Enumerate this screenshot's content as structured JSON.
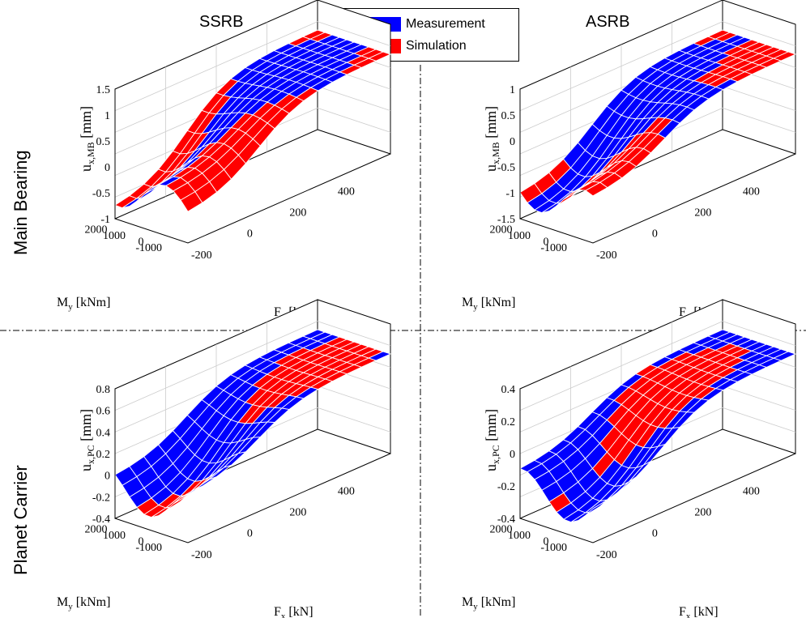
{
  "columns": {
    "left": "SSRB",
    "right": "ASRB"
  },
  "rows": {
    "top": "Main Bearing",
    "bottom": "Planet Carrier"
  },
  "legend": {
    "items": [
      {
        "label": "Measurement",
        "color": "#0000ff"
      },
      {
        "label": "Simulation",
        "color": "#ff0000"
      }
    ]
  },
  "chart_data": [
    {
      "type": "surface",
      "title": "SSRB",
      "row": "Main Bearing",
      "zlabel_main": "u",
      "zlabel_sub": "x,MB",
      "zlabel_unit": "[mm]",
      "xlabel_main": "F",
      "xlabel_sub": "x",
      "xlabel_unit": "[kN]",
      "ylabel_main": "M",
      "ylabel_sub": "y",
      "ylabel_unit": "[kNm]",
      "zticks": [
        "1.5",
        "1",
        "0.5",
        "0",
        "-0.5",
        "-1"
      ],
      "xticks": [
        "-200",
        "0",
        "200",
        "400"
      ],
      "yticks": [
        "2000",
        "1000",
        "0",
        "-1000"
      ],
      "zlim": [
        -1,
        1.5
      ],
      "xlim": [
        -250,
        450
      ],
      "ylim": [
        -1500,
        2500
      ],
      "series": [
        {
          "name": "Measurement",
          "color": "#0000ff",
          "z_range": [
            -1,
            0.9
          ]
        },
        {
          "name": "Simulation",
          "color": "#ff0000",
          "z_range": [
            -1,
            0.9
          ]
        }
      ]
    },
    {
      "type": "surface",
      "title": "ASRB",
      "row": "Main Bearing",
      "zlabel_main": "u",
      "zlabel_sub": "x,MB",
      "zlabel_unit": "[mm]",
      "xlabel_main": "F",
      "xlabel_sub": "x",
      "xlabel_unit": "[kN]",
      "ylabel_main": "M",
      "ylabel_sub": "y",
      "ylabel_unit": "[kNm]",
      "zticks": [
        "1",
        "0.5",
        "0",
        "-0.5",
        "-1",
        "-1.5"
      ],
      "xticks": [
        "-200",
        "0",
        "200",
        "400"
      ],
      "yticks": [
        "2000",
        "1000",
        "0",
        "-1000"
      ],
      "zlim": [
        -1.5,
        1
      ],
      "xlim": [
        -250,
        450
      ],
      "ylim": [
        -1500,
        2500
      ],
      "series": [
        {
          "name": "Measurement",
          "color": "#0000ff",
          "z_range": [
            -1.4,
            0.8
          ]
        },
        {
          "name": "Simulation",
          "color": "#ff0000",
          "z_range": [
            -1.4,
            0.8
          ]
        }
      ]
    },
    {
      "type": "surface",
      "title": "SSRB",
      "row": "Planet Carrier",
      "zlabel_main": "u",
      "zlabel_sub": "x,PC",
      "zlabel_unit": "[mm]",
      "xlabel_main": "F",
      "xlabel_sub": "x",
      "xlabel_unit": "[kN]",
      "ylabel_main": "M",
      "ylabel_sub": "y",
      "ylabel_unit": "[kNm]",
      "zticks": [
        "0.8",
        "0.6",
        "0.4",
        "0.2",
        "0",
        "-0.2",
        "-0.4"
      ],
      "xticks": [
        "-200",
        "0",
        "200",
        "400"
      ],
      "yticks": [
        "2000",
        "1000",
        "0",
        "-1000"
      ],
      "zlim": [
        -0.4,
        0.8
      ],
      "xlim": [
        -250,
        450
      ],
      "ylim": [
        -1500,
        2500
      ],
      "series": [
        {
          "name": "Measurement",
          "color": "#0000ff",
          "z_range": [
            -0.4,
            0.6
          ]
        },
        {
          "name": "Simulation",
          "color": "#ff0000",
          "z_range": [
            -0.4,
            0.6
          ]
        }
      ]
    },
    {
      "type": "surface",
      "title": "ASRB",
      "row": "Planet Carrier",
      "zlabel_main": "u",
      "zlabel_sub": "x,PC",
      "zlabel_unit": "[mm]",
      "xlabel_main": "F",
      "xlabel_sub": "x",
      "xlabel_unit": "[kN]",
      "ylabel_main": "M",
      "ylabel_sub": "y",
      "ylabel_unit": "[kNm]",
      "zticks": [
        "0.4",
        "0.2",
        "0",
        "-0.2",
        "-0.4"
      ],
      "xticks": [
        "-200",
        "0",
        "200",
        "400"
      ],
      "yticks": [
        "2000",
        "1000",
        "0",
        "-1000"
      ],
      "zlim": [
        -0.4,
        0.4
      ],
      "xlim": [
        -250,
        450
      ],
      "ylim": [
        -1500,
        2500
      ],
      "series": [
        {
          "name": "Measurement",
          "color": "#0000ff",
          "z_range": [
            -0.4,
            0.3
          ]
        },
        {
          "name": "Simulation",
          "color": "#ff0000",
          "z_range": [
            -0.4,
            0.3
          ]
        }
      ]
    }
  ]
}
